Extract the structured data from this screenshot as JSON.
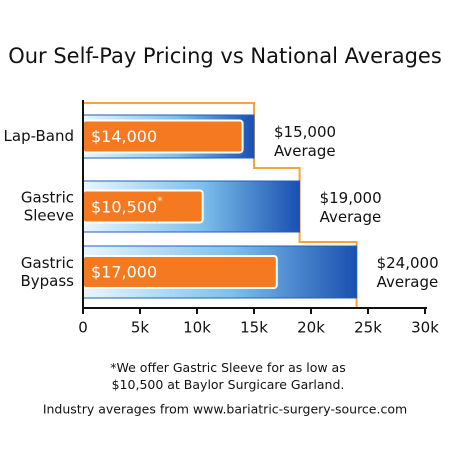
{
  "chart_data": {
    "type": "bar",
    "orientation": "horizontal",
    "title": "Our Self-Pay Pricing vs National Averages",
    "categories": [
      "Lap-Band",
      "Gastric Sleeve",
      "Gastric Bypass"
    ],
    "series": [
      {
        "color": "#1f5fb8",
        "values": [
          15000,
          19000,
          24000
        ],
        "value_labels": [
          "$15,000 Average",
          "$19,000 Average",
          "$24,000 Average"
        ]
      },
      {
        "color": "#f47920",
        "values": [
          14000,
          10500,
          17000
        ],
        "value_labels": [
          "$14,000",
          "$10,500*",
          "$17,000"
        ]
      }
    ],
    "xlim": [
      0,
      30000
    ],
    "xticks": [
      0,
      {
        "value": 5000,
        "label": "5k"
      },
      {
        "value": 10000,
        "label": "10k"
      },
      {
        "value": 15000,
        "label": "15k"
      },
      {
        "value": 20000,
        "label": "20k"
      },
      {
        "value": 25000,
        "label": "25k"
      },
      {
        "value": 30000,
        "label": "30k"
      }
    ],
    "footnote": "*We offer Gastric Sleeve for as low as $10,500 at Baylor Surgicare Garland.",
    "source": "Industry averages from www.bariatric-surgery-source.com"
  }
}
